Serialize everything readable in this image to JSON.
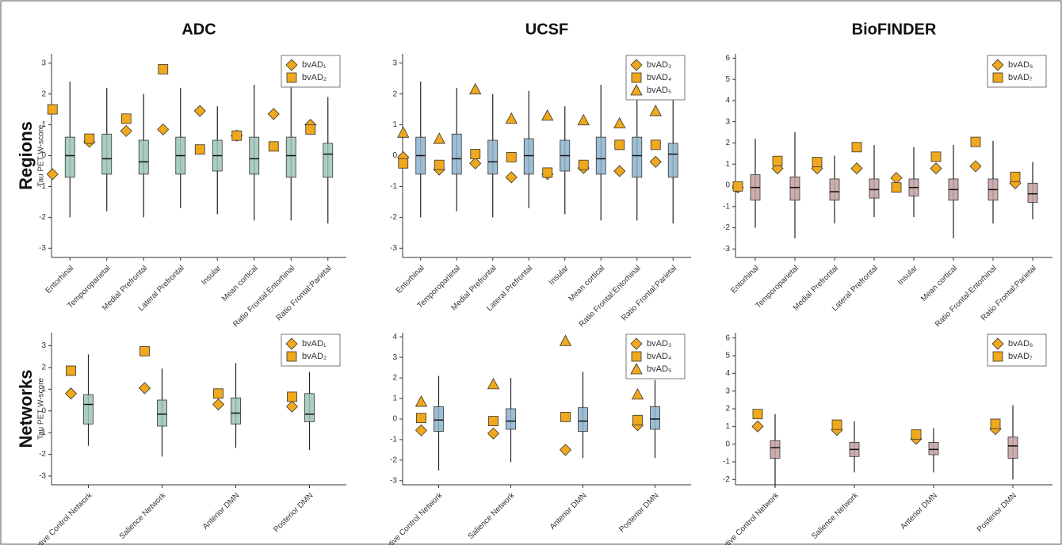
{
  "chart_data": [
    {
      "type": "box",
      "title": "ADC",
      "row_label": "Regions",
      "ylabel": "Tau PET W-score",
      "box_color": "#9ec5b5",
      "legend": "top-right",
      "categories": [
        "Entorhinal",
        "Temporoparietal",
        "Medial Prefrontal",
        "Lateral Prefrontal",
        "Insular",
        "Mean cortical",
        "Ratio Frontal:Entorhinal",
        "Ratio Frontal:Parietal"
      ],
      "ylim": [
        -3.3,
        3.3
      ],
      "yticks": [
        -3,
        -2,
        -1,
        0,
        1,
        2,
        3
      ],
      "boxes": [
        {
          "low": -2.0,
          "q1": -0.7,
          "median": 0,
          "q3": 0.6,
          "high": 2.4
        },
        {
          "low": -1.8,
          "q1": -0.6,
          "median": -0.1,
          "q3": 0.7,
          "high": 2.2
        },
        {
          "low": -2.0,
          "q1": -0.6,
          "median": -0.2,
          "q3": 0.5,
          "high": 2.0
        },
        {
          "low": -1.7,
          "q1": -0.6,
          "median": 0,
          "q3": 0.6,
          "high": 2.2
        },
        {
          "low": -1.9,
          "q1": -0.5,
          "median": 0,
          "q3": 0.5,
          "high": 1.6
        },
        {
          "low": -2.1,
          "q1": -0.6,
          "median": -0.1,
          "q3": 0.6,
          "high": 2.3
        },
        {
          "low": -2.1,
          "q1": -0.7,
          "median": 0,
          "q3": 0.6,
          "high": 2.5
        },
        {
          "low": -2.2,
          "q1": -0.7,
          "median": 0.05,
          "q3": 0.4,
          "high": 1.9
        }
      ],
      "series": [
        {
          "name": "bvAD₁",
          "marker": "diamond",
          "color": "#f0a81c",
          "values": [
            -0.6,
            0.45,
            0.8,
            0.85,
            1.45,
            0.65,
            1.35,
            1.0
          ]
        },
        {
          "name": "bvAD₂",
          "marker": "square",
          "color": "#f0a81c",
          "values": [
            1.5,
            0.55,
            1.2,
            2.8,
            0.2,
            0.65,
            0.3,
            0.85
          ]
        }
      ]
    },
    {
      "type": "box",
      "title": "UCSF",
      "box_color": "#8db3cc",
      "legend": "top-right",
      "categories": [
        "Entorhinal",
        "Temporoparietal",
        "Medial Prefrontal",
        "Lateral Prefrontal",
        "Insular",
        "Mean cortical",
        "Ratio Frontal:Entorhinal",
        "Ratio Frontal:Parietal"
      ],
      "ylim": [
        -3.3,
        3.3
      ],
      "yticks": [
        -3,
        -2,
        -1,
        0,
        1,
        2,
        3
      ],
      "boxes": [
        {
          "low": -2.0,
          "q1": -0.6,
          "median": 0,
          "q3": 0.6,
          "high": 2.4
        },
        {
          "low": -1.8,
          "q1": -0.6,
          "median": -0.1,
          "q3": 0.7,
          "high": 2.2
        },
        {
          "low": -2.0,
          "q1": -0.6,
          "median": -0.2,
          "q3": 0.5,
          "high": 2.0
        },
        {
          "low": -1.7,
          "q1": -0.6,
          "median": 0,
          "q3": 0.55,
          "high": 2.1
        },
        {
          "low": -1.9,
          "q1": -0.5,
          "median": 0,
          "q3": 0.5,
          "high": 1.6
        },
        {
          "low": -2.1,
          "q1": -0.6,
          "median": -0.1,
          "q3": 0.6,
          "high": 2.3
        },
        {
          "low": -2.1,
          "q1": -0.7,
          "median": 0,
          "q3": 0.6,
          "high": 2.5
        },
        {
          "low": -2.2,
          "q1": -0.7,
          "median": 0.05,
          "q3": 0.4,
          "high": 1.9
        }
      ],
      "series": [
        {
          "name": "bvAD₃",
          "marker": "diamond",
          "color": "#f0a81c",
          "values": [
            -0.05,
            -0.45,
            -0.25,
            -0.7,
            -0.6,
            -0.4,
            -0.5,
            -0.2
          ]
        },
        {
          "name": "bvAD₄",
          "marker": "square",
          "color": "#f0a81c",
          "values": [
            -0.25,
            -0.3,
            0.05,
            -0.05,
            -0.55,
            -0.3,
            0.35,
            0.35
          ]
        },
        {
          "name": "bvAD₅",
          "marker": "triangle",
          "color": "#f0a81c",
          "values": [
            0.75,
            0.55,
            2.15,
            1.2,
            1.3,
            1.15,
            1.05,
            1.45
          ]
        }
      ]
    },
    {
      "type": "box",
      "title": "BioFINDER",
      "box_color": "#c4a0a0",
      "legend": "top-right",
      "categories": [
        "Entorhinal",
        "Temporoparietal",
        "Medial Prefrontal",
        "Lateral Prefrontal",
        "Insular",
        "Mean cortical",
        "Ratio Frontal:Entorhinal",
        "Ratio Frontal:Parietal"
      ],
      "ylim": [
        -3.4,
        6.2
      ],
      "yticks": [
        -3,
        -2,
        -1,
        0,
        1,
        2,
        3,
        4,
        5,
        6
      ],
      "boxes": [
        {
          "low": -2.0,
          "q1": -0.7,
          "median": -0.1,
          "q3": 0.5,
          "high": 2.2
        },
        {
          "low": -2.5,
          "q1": -0.7,
          "median": -0.1,
          "q3": 0.4,
          "high": 2.5
        },
        {
          "low": -1.8,
          "q1": -0.7,
          "median": -0.3,
          "q3": 0.3,
          "high": 1.4
        },
        {
          "low": -1.5,
          "q1": -0.6,
          "median": -0.2,
          "q3": 0.3,
          "high": 1.9
        },
        {
          "low": -1.5,
          "q1": -0.5,
          "median": -0.1,
          "q3": 0.3,
          "high": 1.8
        },
        {
          "low": -2.5,
          "q1": -0.7,
          "median": -0.2,
          "q3": 0.3,
          "high": 1.9
        },
        {
          "low": -1.8,
          "q1": -0.7,
          "median": -0.2,
          "q3": 0.3,
          "high": 2.1
        },
        {
          "low": -1.6,
          "q1": -0.8,
          "median": -0.4,
          "q3": 0.1,
          "high": 1.1
        }
      ],
      "series": [
        {
          "name": "bvAD₆",
          "marker": "diamond",
          "color": "#f0a81c",
          "values": [
            -0.1,
            0.8,
            0.8,
            0.8,
            0.35,
            0.8,
            0.9,
            0.1
          ]
        },
        {
          "name": "bvAD₇",
          "marker": "square",
          "color": "#f0a81c",
          "values": [
            -0.05,
            1.15,
            1.1,
            1.8,
            -0.1,
            1.35,
            2.05,
            0.4
          ]
        }
      ]
    },
    {
      "type": "box",
      "row_label": "Networks",
      "ylabel": "Tau PET W-score",
      "box_color": "#9ec5b5",
      "legend": "top-right",
      "categories": [
        "Executive Control Network",
        "Salience Network",
        "Anterior DMN",
        "Posterior DMN"
      ],
      "ylim": [
        -3.4,
        3.6
      ],
      "yticks": [
        -3,
        -2,
        -1,
        0,
        1,
        2,
        3
      ],
      "boxes": [
        {
          "low": -1.6,
          "q1": -0.6,
          "median": 0.3,
          "q3": 0.75,
          "high": 2.6
        },
        {
          "low": -2.1,
          "q1": -0.7,
          "median": -0.15,
          "q3": 0.5,
          "high": 1.95
        },
        {
          "low": -1.7,
          "q1": -0.6,
          "median": -0.1,
          "q3": 0.6,
          "high": 2.2
        },
        {
          "low": -1.8,
          "q1": -0.5,
          "median": -0.15,
          "q3": 0.8,
          "high": 1.8
        }
      ],
      "series": [
        {
          "name": "bvAD₁",
          "marker": "diamond",
          "color": "#f0a81c",
          "values": [
            0.8,
            1.05,
            0.3,
            0.2
          ]
        },
        {
          "name": "bvAD₂",
          "marker": "square",
          "color": "#f0a81c",
          "values": [
            1.85,
            2.75,
            0.8,
            0.65
          ]
        }
      ]
    },
    {
      "type": "box",
      "box_color": "#8db3cc",
      "legend": "top-right",
      "categories": [
        "Executive Control Network",
        "Salience Network",
        "Anterior DMN",
        "Posterior DMN"
      ],
      "ylim": [
        -3.2,
        4.2
      ],
      "yticks": [
        -3,
        -2,
        -1,
        0,
        1,
        2,
        3,
        4
      ],
      "boxes": [
        {
          "low": -2.5,
          "q1": -0.6,
          "median": -0.05,
          "q3": 0.6,
          "high": 2.1
        },
        {
          "low": -2.1,
          "q1": -0.5,
          "median": -0.1,
          "q3": 0.5,
          "high": 2.0
        },
        {
          "low": -1.9,
          "q1": -0.6,
          "median": -0.1,
          "q3": 0.55,
          "high": 2.3
        },
        {
          "low": -1.9,
          "q1": -0.5,
          "median": 0,
          "q3": 0.6,
          "high": 1.9
        }
      ],
      "series": [
        {
          "name": "bvAD₃",
          "marker": "diamond",
          "color": "#f0a81c",
          "values": [
            -0.55,
            -0.7,
            -1.5,
            -0.3
          ]
        },
        {
          "name": "bvAD₄",
          "marker": "square",
          "color": "#f0a81c",
          "values": [
            0.05,
            -0.1,
            0.1,
            -0.05
          ]
        },
        {
          "name": "bvAD₅",
          "marker": "triangle",
          "color": "#f0a81c",
          "values": [
            0.85,
            1.7,
            3.8,
            1.2
          ]
        }
      ]
    },
    {
      "type": "box",
      "box_color": "#c4a0a0",
      "legend": "top-right",
      "categories": [
        "Executive Control Network",
        "Salience Network",
        "Anterior DMN",
        "Posterior DMN"
      ],
      "ylim": [
        -2.3,
        6.3
      ],
      "yticks": [
        -2,
        -1,
        0,
        1,
        2,
        3,
        4,
        5,
        6
      ],
      "boxes": [
        {
          "low": -2.4,
          "q1": -0.8,
          "median": -0.2,
          "q3": 0.2,
          "high": 1.7
        },
        {
          "low": -1.6,
          "q1": -0.7,
          "median": -0.3,
          "q3": 0.1,
          "high": 1.3
        },
        {
          "low": -1.6,
          "q1": -0.6,
          "median": -0.3,
          "q3": 0.1,
          "high": 0.9
        },
        {
          "low": -2.0,
          "q1": -0.8,
          "median": -0.1,
          "q3": 0.4,
          "high": 2.2
        }
      ],
      "series": [
        {
          "name": "bvAD₆",
          "marker": "diamond",
          "color": "#f0a81c",
          "values": [
            1.0,
            0.8,
            0.3,
            0.85
          ]
        },
        {
          "name": "bvAD₇",
          "marker": "square",
          "color": "#f0a81c",
          "values": [
            1.7,
            1.1,
            0.55,
            1.15
          ]
        }
      ]
    }
  ]
}
